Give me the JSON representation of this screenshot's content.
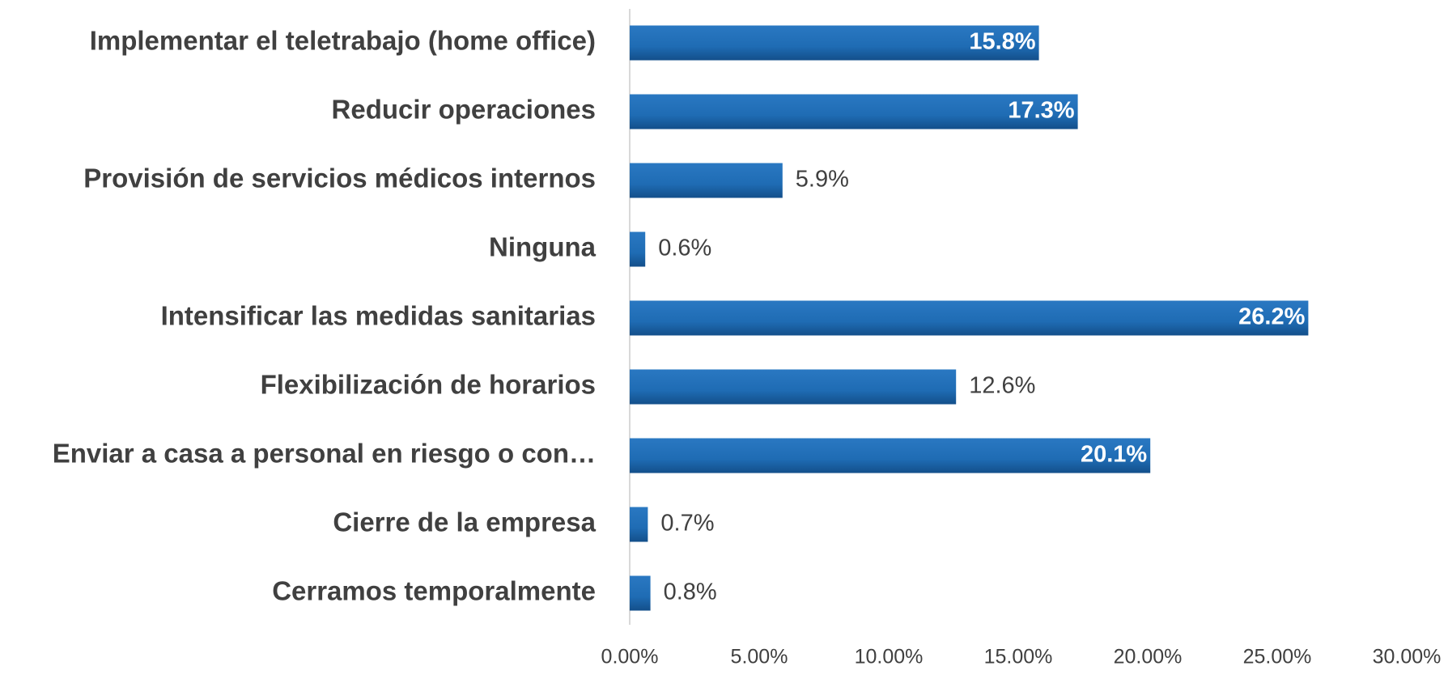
{
  "chart_data": {
    "type": "hbar",
    "categories": [
      "Implementar el teletrabajo (home office)",
      "Reducir operaciones",
      "Provisión de servicios médicos internos",
      "Ninguna",
      "Intensificar las medidas sanitarias",
      "Flexibilización de horarios",
      "Enviar a casa a personal en riesgo o con…",
      "Cierre de la empresa",
      "Cerramos temporalmente"
    ],
    "values": [
      15.8,
      17.3,
      5.9,
      0.6,
      26.2,
      12.6,
      20.1,
      0.7,
      0.8
    ],
    "value_labels": [
      "15.8%",
      "17.3%",
      "5.9%",
      "0.6%",
      "26.2%",
      "12.6%",
      "20.1%",
      "0.7%",
      "0.8%"
    ],
    "color": "#1f6cb4",
    "xlim": [
      0,
      30
    ],
    "xticks": [
      {
        "value": 0,
        "label": "0.00%"
      },
      {
        "value": 5,
        "label": "5.00%"
      },
      {
        "value": 10,
        "label": "10.00%"
      },
      {
        "value": 15,
        "label": "15.00%"
      },
      {
        "value": 20,
        "label": "20.00%"
      },
      {
        "value": 25,
        "label": "25.00%"
      },
      {
        "value": 30,
        "label": "30.00%"
      }
    ],
    "grid": false
  }
}
